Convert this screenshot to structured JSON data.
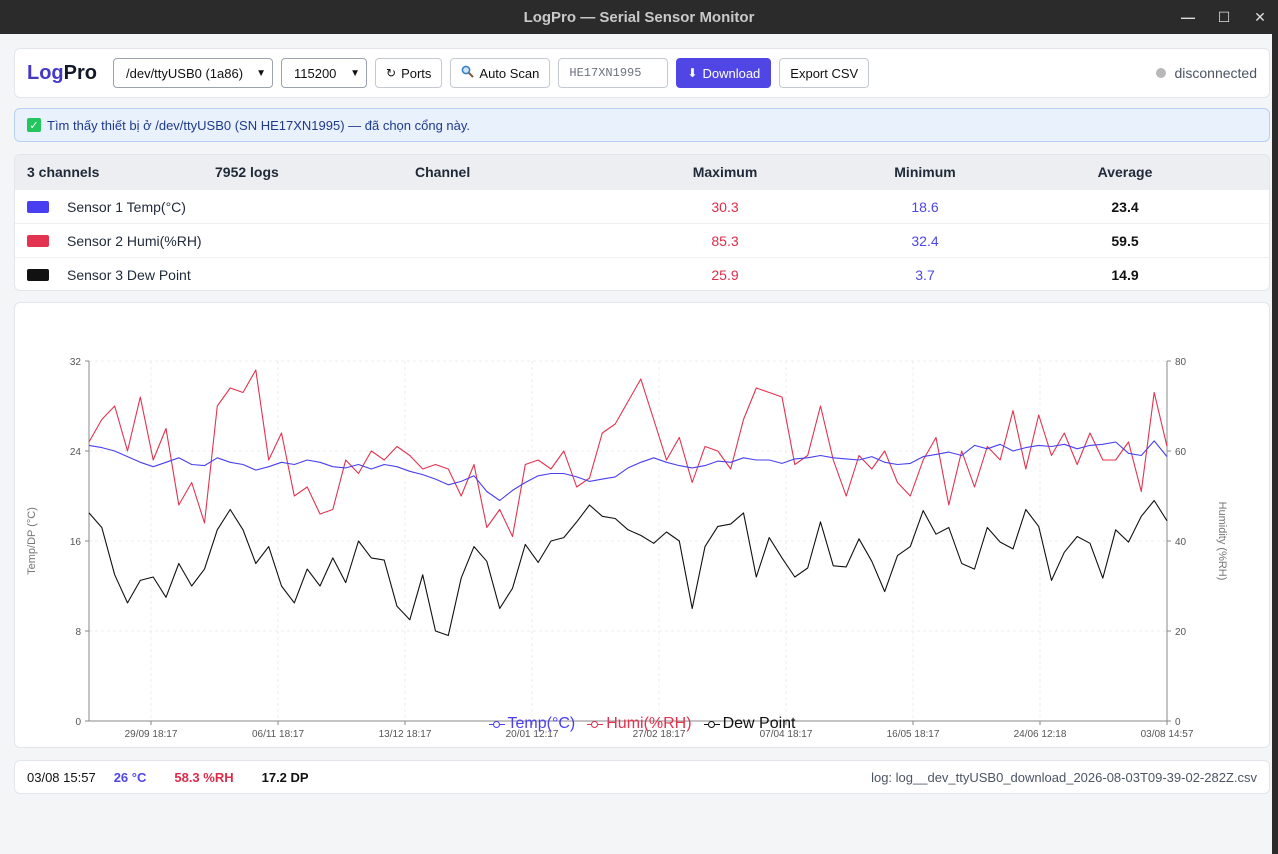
{
  "window": {
    "title": "LogPro — Serial Sensor Monitor",
    "controls": [
      "—",
      "☐",
      "✕"
    ]
  },
  "toolbar": {
    "logo_part1": "Log",
    "logo_part2": "Pro",
    "port_select": "/dev/ttyUSB0 (1a86)",
    "baud_select": "115200",
    "ports_label": "Ports",
    "autoscan_label": "Auto Scan",
    "serial_value": "HE17XN1995",
    "download_label": "Download",
    "export_label": "Export CSV",
    "status": "disconnected"
  },
  "banner": {
    "text": "Tìm thấy thiết bị ở /dev/ttyUSB0 (SN HE17XN1995) — đã chọn cổng này."
  },
  "stats": {
    "headers": {
      "channels": "3 channels",
      "logs": "7952 logs",
      "channel": "Channel",
      "maximum": "Maximum",
      "minimum": "Minimum",
      "average": "Average"
    },
    "rows": [
      {
        "name": "Sensor 1 Temp(°C)",
        "color": "#4a3ff0",
        "max": "30.3",
        "min": "18.6",
        "avg": "23.4"
      },
      {
        "name": "Sensor 2 Humi(%RH)",
        "color": "#e23350",
        "max": "85.3",
        "min": "32.4",
        "avg": "59.5"
      },
      {
        "name": "Sensor 3 Dew Point",
        "color": "#111111",
        "max": "25.9",
        "min": "3.7",
        "avg": "14.9"
      }
    ]
  },
  "chart_data": {
    "type": "line",
    "ylabel_left": "Temp/DP (°C)",
    "ylabel_right": "Humidity (%RH)",
    "ylim_left": [
      0,
      32
    ],
    "ylim_right": [
      0,
      80
    ],
    "yticks_left": [
      "0",
      "8",
      "16",
      "24",
      "32"
    ],
    "yticks_right": [
      "0",
      "20",
      "40",
      "60",
      "80"
    ],
    "x_tick_labels": [
      "29/09 18:17",
      "06/11 18:17",
      "13/12 18:17",
      "20/01 12:17",
      "27/02 18:17",
      "07/04 18:17",
      "16/05 18:17",
      "24/06 12:18",
      "03/08 14:57"
    ],
    "grid": true,
    "legend_position": "bottom-center",
    "n_points": 7952,
    "series": [
      {
        "name": "Temp(°C)",
        "axis": "left",
        "color": "#4a3ff0",
        "values": [
          24.5,
          24.3,
          24.0,
          23.5,
          23.0,
          22.6,
          23.0,
          23.4,
          22.8,
          22.7,
          23.4,
          23.0,
          22.8,
          22.3,
          22.6,
          23.0,
          22.8,
          23.2,
          23.0,
          22.6,
          22.5,
          22.8,
          22.4,
          22.8,
          22.6,
          22.2,
          21.9,
          21.5,
          21.0,
          21.3,
          21.8,
          20.4,
          19.6,
          20.5,
          21.2,
          21.8,
          22.0,
          22.0,
          21.7,
          21.3,
          21.5,
          21.7,
          22.5,
          23.0,
          23.4,
          23.0,
          22.7,
          22.5,
          22.7,
          23.1,
          23.0,
          23.4,
          23.2,
          23.2,
          22.9,
          23.3,
          23.4,
          23.6,
          23.4,
          23.3,
          23.2,
          23.5,
          23.0,
          22.8,
          22.9,
          23.5,
          23.7,
          23.9,
          23.6,
          24.5,
          24.2,
          24.6,
          24.0,
          24.3,
          24.5,
          24.4,
          24.6,
          24.2,
          24.5,
          24.6,
          24.8,
          23.8,
          23.6,
          24.9,
          23.5
        ]
      },
      {
        "name": "Humi(%RH)",
        "axis": "right",
        "color": "#e23350",
        "values": [
          62,
          67,
          70,
          60,
          72,
          58,
          65,
          48,
          53,
          44,
          70,
          74,
          73,
          78,
          58,
          64,
          50,
          52,
          46,
          47,
          58,
          55,
          60,
          58,
          61,
          59,
          56,
          57,
          56,
          50,
          57,
          43,
          47,
          41,
          57,
          58,
          56,
          60,
          52,
          54,
          64,
          66,
          71,
          76,
          67,
          58,
          63,
          53,
          61,
          60,
          56,
          67,
          74,
          73,
          72,
          57,
          59,
          70,
          58,
          50,
          59,
          56,
          60,
          53,
          50,
          58,
          63,
          48,
          60,
          52,
          61,
          58,
          69,
          56,
          68,
          59,
          64,
          57,
          64,
          58,
          58,
          62,
          51,
          73,
          61
        ]
      },
      {
        "name": "Dew Point",
        "axis": "left",
        "color": "#111111",
        "values": [
          18.5,
          17.2,
          13.0,
          10.5,
          12.5,
          12.8,
          11.0,
          14.0,
          12.0,
          13.5,
          17.0,
          18.8,
          17.0,
          14.0,
          15.5,
          12.0,
          10.5,
          13.5,
          12.0,
          14.5,
          12.3,
          16.0,
          14.5,
          14.3,
          10.2,
          9.0,
          13.0,
          8.0,
          7.6,
          12.7,
          15.5,
          14.2,
          10.0,
          11.8,
          15.7,
          14.1,
          16.0,
          16.3,
          17.7,
          19.2,
          18.2,
          18.0,
          17.0,
          16.5,
          15.8,
          16.8,
          16.0,
          10.0,
          15.5,
          17.3,
          17.5,
          18.5,
          12.8,
          16.3,
          14.5,
          12.8,
          13.6,
          17.7,
          13.8,
          13.7,
          16.2,
          14.2,
          11.5,
          14.7,
          15.5,
          18.7,
          16.6,
          17.2,
          14.0,
          13.5,
          17.2,
          15.9,
          15.3,
          18.8,
          17.3,
          12.5,
          15.0,
          16.4,
          15.8,
          12.7,
          17.0,
          15.9,
          18.2,
          19.6,
          17.8
        ]
      }
    ]
  },
  "footer": {
    "time": "03/08 15:57",
    "temp": "26 °C",
    "humi": "58.3 %RH",
    "dp": "17.2 DP",
    "log": "log: log__dev_ttyUSB0_download_2026-08-03T09-39-02-282Z.csv"
  },
  "colors": {
    "accent": "#4f46e5",
    "temp": "#4a3ff0",
    "humi": "#e23350",
    "dp": "#111111",
    "status_dot": "#b8b8b8"
  },
  "icons": {
    "ports": "refresh-icon",
    "autoscan": "magnifier-icon",
    "download": "download-arrow-icon",
    "banner": "check-icon",
    "status": "status-dot-icon"
  }
}
